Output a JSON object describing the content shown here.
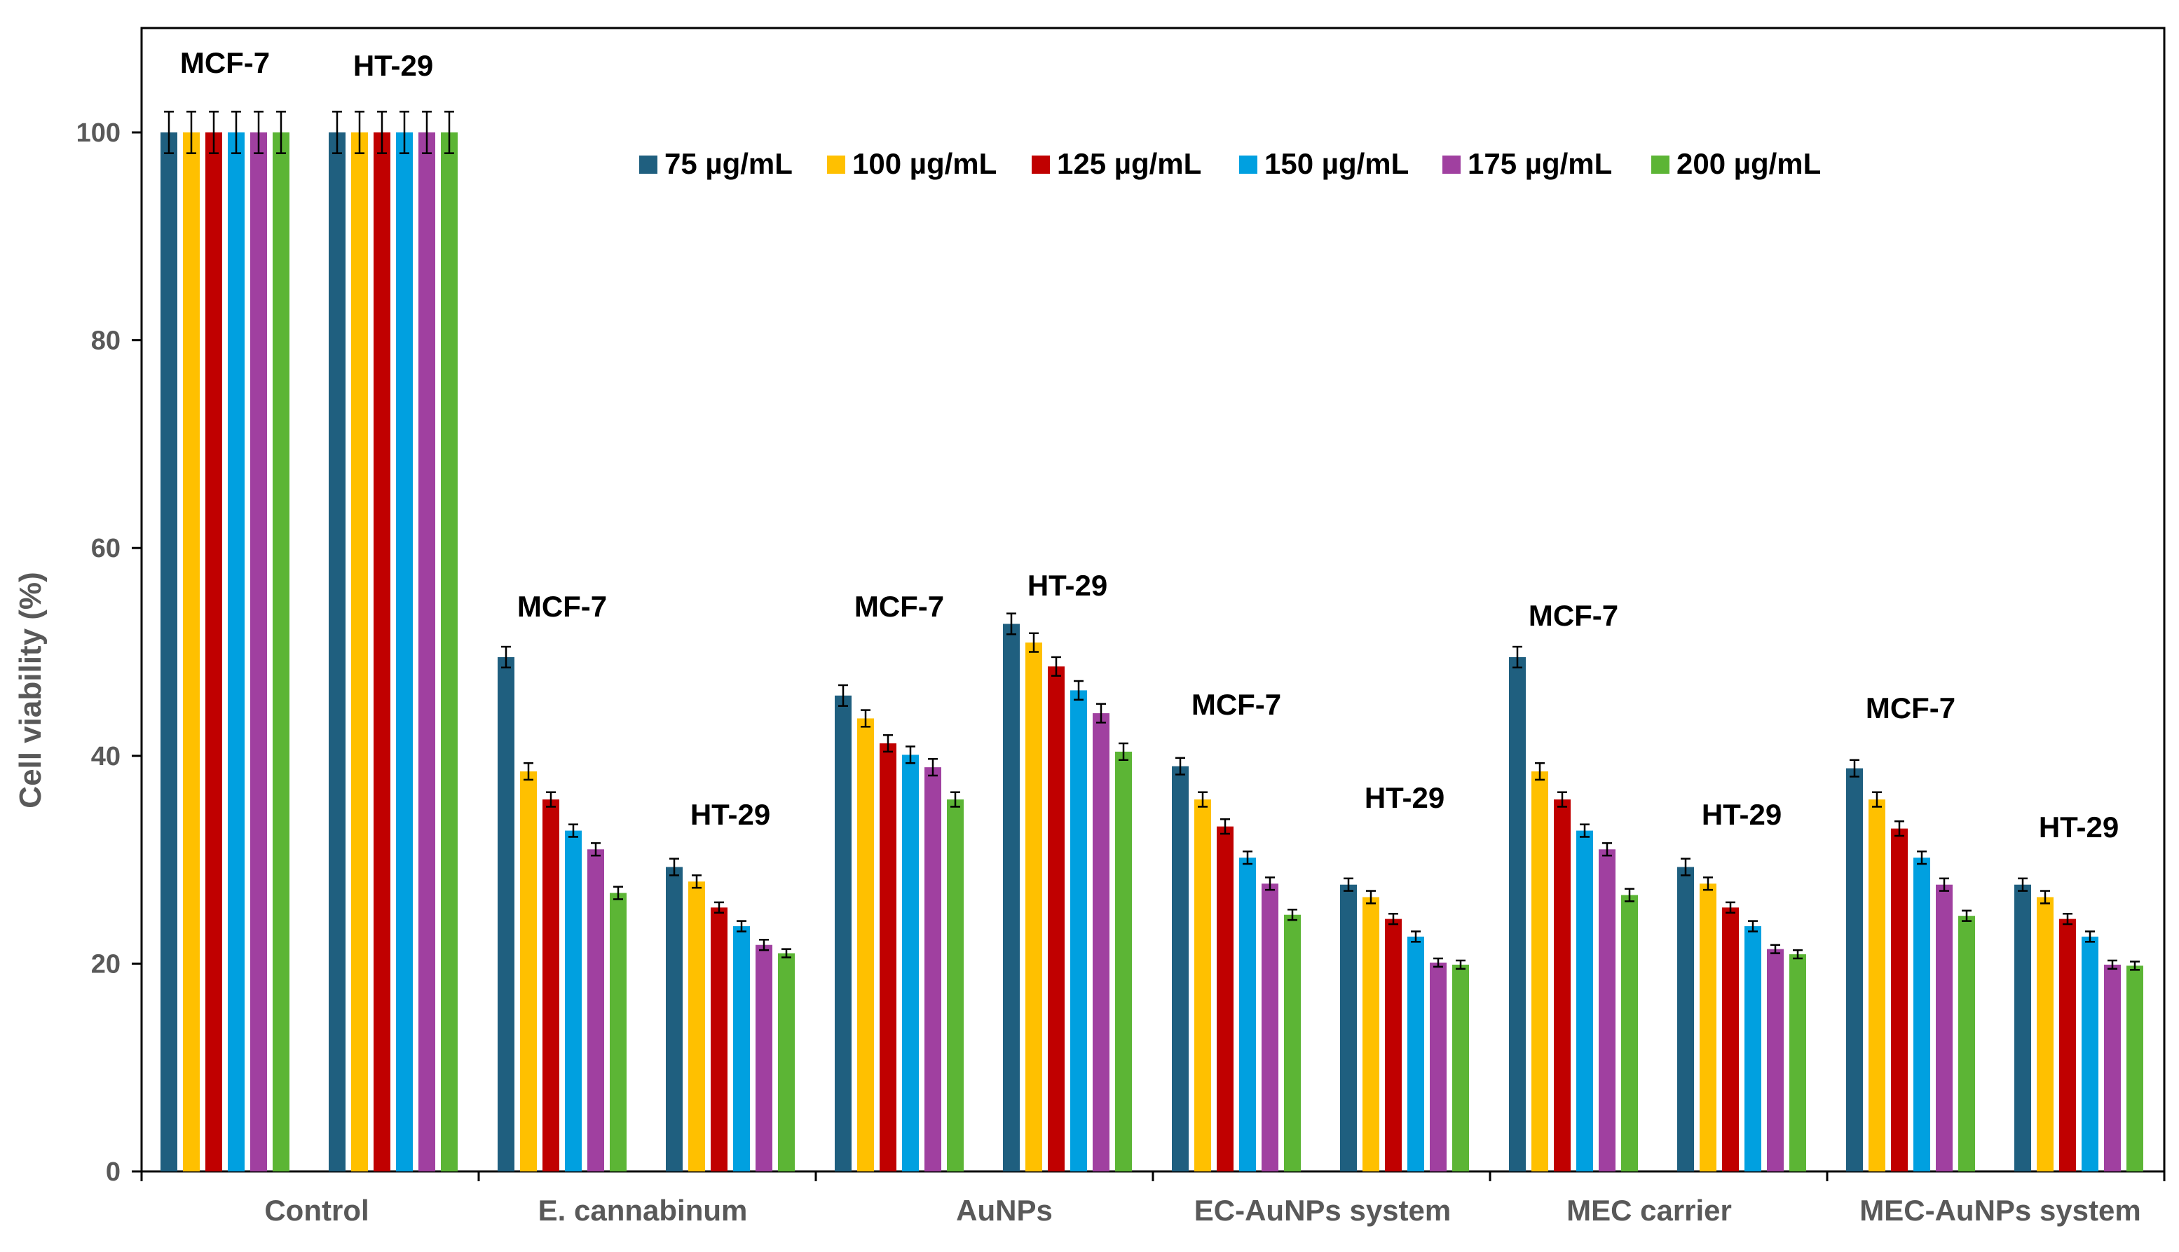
{
  "chart_data": {
    "type": "bar",
    "title": "",
    "xlabel": "",
    "ylabel": "Cell viability (%)",
    "ylim": [
      0,
      110
    ],
    "yticks": [
      0,
      20,
      40,
      60,
      80,
      100
    ],
    "grid": false,
    "legend_position": "top-center",
    "categories": [
      "Control",
      "E. cannabinum",
      "AuNPs",
      "EC-AuNPs system",
      "MEC carrier",
      "MEC-AuNPs system"
    ],
    "subgroups": [
      "MCF-7",
      "HT-29"
    ],
    "series": [
      {
        "name": "75",
        "unit": "µg/mL",
        "color": "#1f5f7f",
        "values": [
          [
            100,
            100
          ],
          [
            49.5,
            29.3
          ],
          [
            45.8,
            52.7
          ],
          [
            39.0,
            27.6
          ],
          [
            49.5,
            29.3
          ],
          [
            38.8,
            27.6
          ]
        ],
        "errors": [
          [
            2,
            2
          ],
          [
            1.0,
            0.8
          ],
          [
            1.0,
            1.0
          ],
          [
            0.8,
            0.6
          ],
          [
            1.0,
            0.8
          ],
          [
            0.8,
            0.6
          ]
        ]
      },
      {
        "name": "100",
        "unit": "µg/mL",
        "color": "#ffc000",
        "values": [
          [
            100,
            100
          ],
          [
            38.5,
            27.9
          ],
          [
            43.6,
            50.9
          ],
          [
            35.8,
            26.4
          ],
          [
            38.5,
            27.7
          ],
          [
            35.8,
            26.4
          ]
        ],
        "errors": [
          [
            2,
            2
          ],
          [
            0.8,
            0.6
          ],
          [
            0.8,
            0.9
          ],
          [
            0.7,
            0.6
          ],
          [
            0.8,
            0.6
          ],
          [
            0.7,
            0.6
          ]
        ]
      },
      {
        "name": "125",
        "unit": "µg/mL",
        "color": "#c00000",
        "values": [
          [
            100,
            100
          ],
          [
            35.8,
            25.4
          ],
          [
            41.2,
            48.6
          ],
          [
            33.2,
            24.3
          ],
          [
            35.8,
            25.4
          ],
          [
            33.0,
            24.3
          ]
        ],
        "errors": [
          [
            2,
            2
          ],
          [
            0.7,
            0.5
          ],
          [
            0.8,
            0.9
          ],
          [
            0.7,
            0.5
          ],
          [
            0.7,
            0.5
          ],
          [
            0.7,
            0.5
          ]
        ]
      },
      {
        "name": "150",
        "unit": "µg/mL",
        "color": "#00a0e0",
        "values": [
          [
            100,
            100
          ],
          [
            32.8,
            23.6
          ],
          [
            40.1,
            46.3
          ],
          [
            30.2,
            22.6
          ],
          [
            32.8,
            23.6
          ],
          [
            30.2,
            22.6
          ]
        ],
        "errors": [
          [
            2,
            2
          ],
          [
            0.6,
            0.5
          ],
          [
            0.8,
            0.9
          ],
          [
            0.6,
            0.5
          ],
          [
            0.6,
            0.5
          ],
          [
            0.6,
            0.5
          ]
        ]
      },
      {
        "name": "175",
        "unit": "µg/mL",
        "color": "#a040a0",
        "values": [
          [
            100,
            100
          ],
          [
            31.0,
            21.8
          ],
          [
            38.9,
            44.1
          ],
          [
            27.7,
            20.1
          ],
          [
            31.0,
            21.4
          ],
          [
            27.6,
            19.9
          ]
        ],
        "errors": [
          [
            2,
            2
          ],
          [
            0.6,
            0.5
          ],
          [
            0.8,
            0.9
          ],
          [
            0.6,
            0.4
          ],
          [
            0.6,
            0.4
          ],
          [
            0.6,
            0.4
          ]
        ]
      },
      {
        "name": "200",
        "unit": "µg/mL",
        "color": "#5cb535",
        "values": [
          [
            100,
            100
          ],
          [
            26.8,
            21.0
          ],
          [
            35.8,
            40.4
          ],
          [
            24.7,
            19.9
          ],
          [
            26.6,
            20.9
          ],
          [
            24.6,
            19.8
          ]
        ],
        "errors": [
          [
            2,
            2
          ],
          [
            0.6,
            0.4
          ],
          [
            0.7,
            0.8
          ],
          [
            0.5,
            0.4
          ],
          [
            0.6,
            0.4
          ],
          [
            0.5,
            0.4
          ]
        ]
      }
    ]
  }
}
